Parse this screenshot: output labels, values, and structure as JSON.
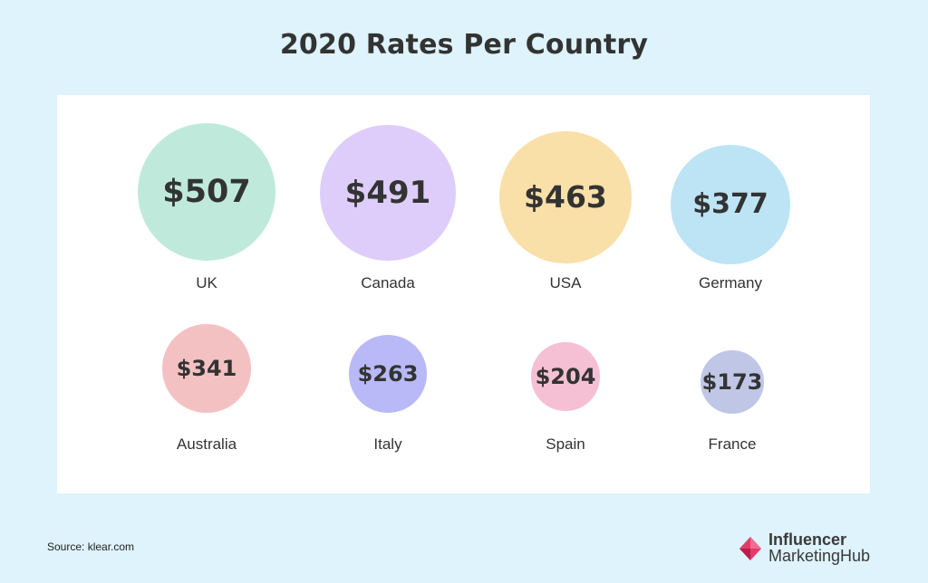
{
  "title": "2020 Rates Per Country",
  "source": "Source: klear.com",
  "logo": {
    "line1": "Influencer",
    "line2": "MarketingHub"
  },
  "chart_data": {
    "type": "bubble",
    "title": "2020 Rates Per Country",
    "unit": "$",
    "categories": [
      "UK",
      "Canada",
      "USA",
      "Germany",
      "Australia",
      "Italy",
      "Spain",
      "France"
    ],
    "values": [
      507,
      491,
      463,
      377,
      341,
      263,
      204,
      173
    ],
    "labels": [
      "$507",
      "$491",
      "$463",
      "$377",
      "$341",
      "$263",
      "$204",
      "$173"
    ],
    "colors": [
      "#bfeadb",
      "#decdfa",
      "#f9dfa8",
      "#bde4f5",
      "#f4c1c2",
      "#b8b9f6",
      "#f5c0d3",
      "#c0c6e6"
    ],
    "legend": "none",
    "grid": false
  }
}
